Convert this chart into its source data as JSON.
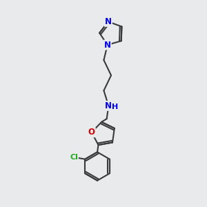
{
  "background_color": "#e8eaec",
  "bond_color": "#3a3a3a",
  "N_color": "#0000ee",
  "NH_color": "#0000ee",
  "O_color": "#cc0000",
  "Cl_color": "#22aa22",
  "line_width": 1.5,
  "font_size_atom": 8.5,
  "fig_size": [
    3.0,
    3.0
  ],
  "dpi": 100,
  "xlim": [
    0,
    10
  ],
  "ylim": [
    0,
    10
  ]
}
